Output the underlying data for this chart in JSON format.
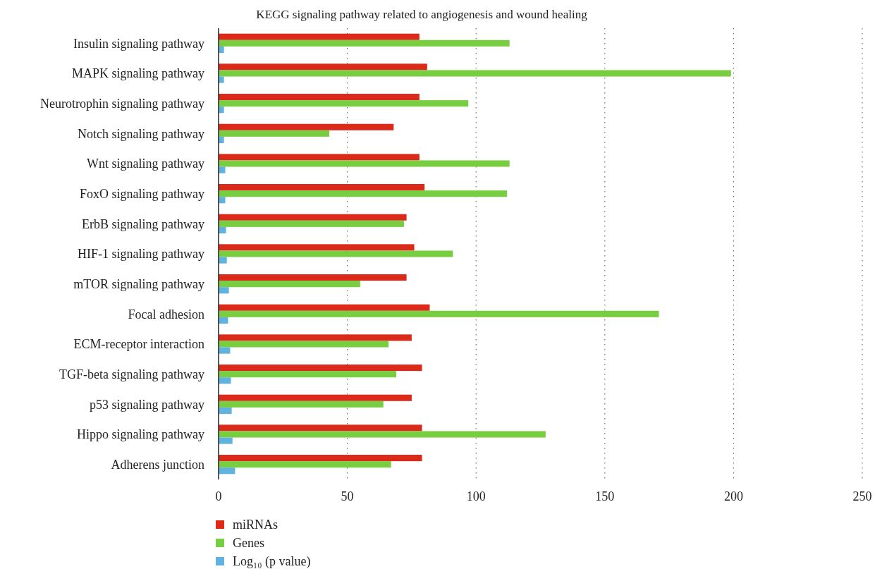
{
  "chart_data": {
    "type": "bar",
    "orientation": "horizontal",
    "title": "KEGG signaling pathway related to angiogenesis and wound healing",
    "categories": [
      "Insulin signaling pathway",
      "MAPK signaling pathway",
      "Neurotrophin signaling pathway",
      "Notch signaling pathway",
      "Wnt signaling pathway",
      "FoxO signaling pathway",
      "ErbB signaling pathway",
      "HIF-1 signaling pathway",
      "mTOR signaling pathway",
      "Focal adhesion",
      "ECM-receptor interaction",
      "TGF-beta signaling pathway",
      "p53 signaling pathway",
      "Hippo signaling pathway",
      "Adherens junction"
    ],
    "series": [
      {
        "name": "miRNAs",
        "color": "#dc2a1a",
        "values": [
          78,
          81,
          78,
          68,
          78,
          80,
          73,
          76,
          73,
          82,
          75,
          79,
          75,
          79,
          79
        ]
      },
      {
        "name": "Genes",
        "color": "#79cd40",
        "values": [
          113,
          199,
          97,
          43,
          113,
          112,
          72,
          91,
          55,
          171,
          66,
          69,
          64,
          127,
          67
        ]
      },
      {
        "name": "Log₁₀ (p value)",
        "color": "#60b3de",
        "values": [
          2.1,
          2.1,
          2.1,
          2.1,
          2.6,
          2.6,
          2.9,
          3.2,
          4.0,
          3.7,
          4.5,
          4.8,
          5.1,
          5.4,
          6.4
        ]
      }
    ],
    "xlim": [
      0,
      250
    ],
    "xticks": [
      0,
      50,
      100,
      150,
      200,
      250
    ],
    "grid": "x",
    "legend": "bottom left"
  }
}
